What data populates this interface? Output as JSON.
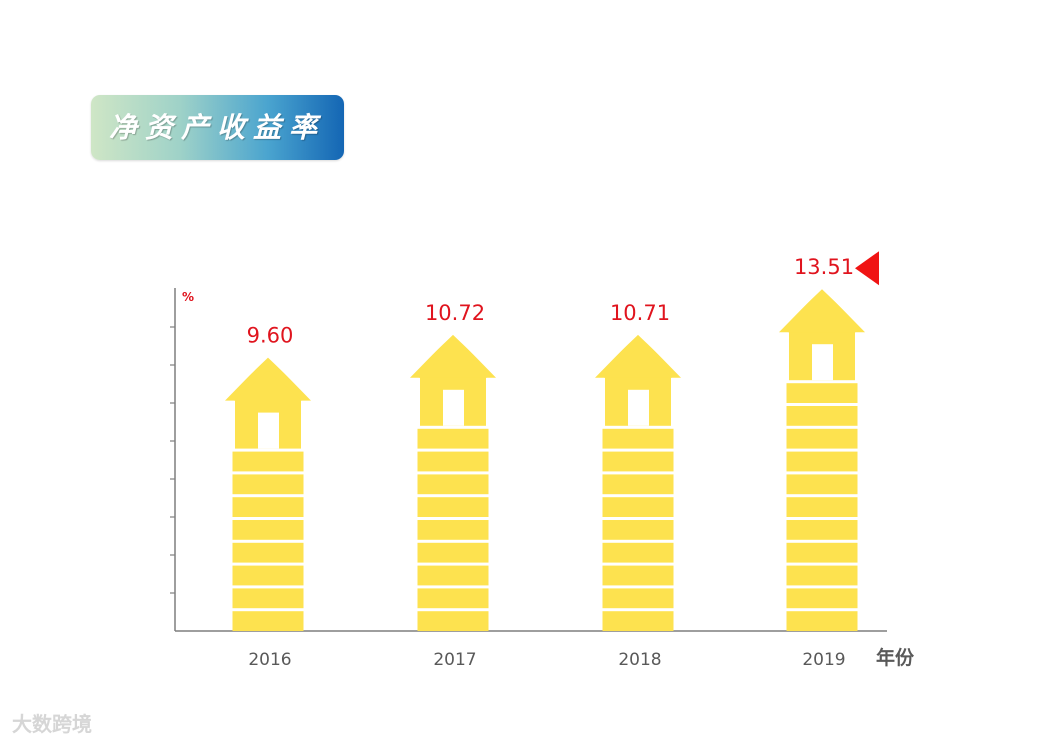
{
  "title": "净资产收益率",
  "watermark": "大数跨境",
  "chart_data": {
    "type": "bar",
    "categories": [
      "2016",
      "2017",
      "2018",
      "2019"
    ],
    "values": [
      9.6,
      10.72,
      10.71,
      13.51
    ],
    "value_labels": [
      "9.60",
      "10.72",
      "10.71",
      "13.51"
    ],
    "ylabel": "%",
    "xlabel": "年份",
    "highlight_category": "2019",
    "colors": {
      "bar": "#fde24f",
      "label": "#e0141e",
      "marker": "#f01414",
      "axis": "#7f7f7f"
    }
  }
}
